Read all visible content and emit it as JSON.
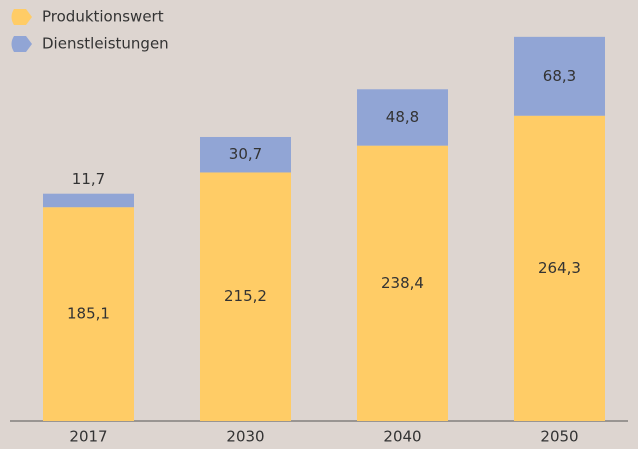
{
  "chart_data": {
    "type": "stacked-bar",
    "categories": [
      "2017",
      "2030",
      "2040",
      "2050"
    ],
    "series": [
      {
        "name": "Produktionswert",
        "color": "#ffcc66",
        "values": [
          185.1,
          215.2,
          238.4,
          264.3
        ],
        "value_labels": [
          "185,1",
          "215,2",
          "238,4",
          "264,3"
        ]
      },
      {
        "name": "Dienstleistungen",
        "color": "#91a5d5",
        "values": [
          11.7,
          30.7,
          48.8,
          68.3
        ],
        "value_labels": [
          "11,7",
          "30,7",
          "48,8",
          "68,3"
        ]
      }
    ]
  }
}
